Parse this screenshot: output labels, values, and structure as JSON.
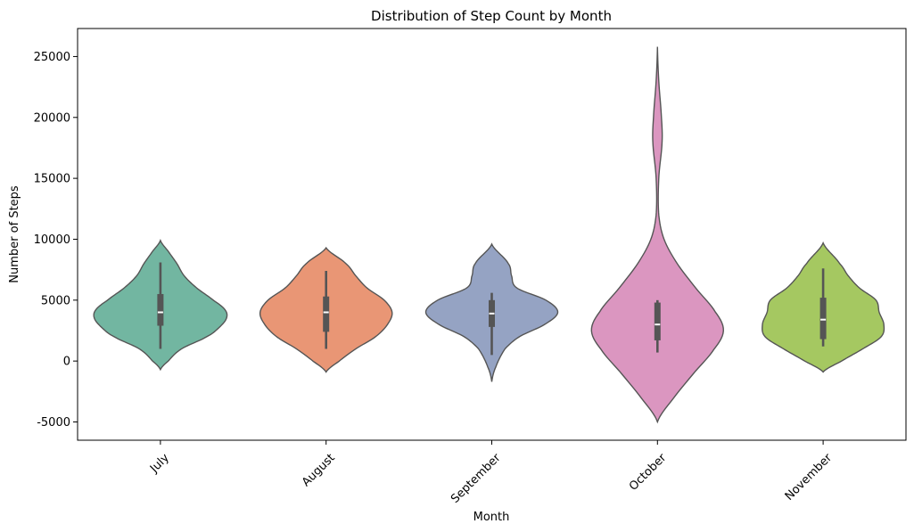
{
  "chart_data": {
    "type": "violin",
    "title": "Distribution of Step Count by Month",
    "xlabel": "Month",
    "ylabel": "Number of Steps",
    "ylim": [
      -6500,
      27300
    ],
    "yticks": [
      -5000,
      0,
      5000,
      10000,
      15000,
      20000,
      25000
    ],
    "grid": false,
    "legend": "none",
    "colors": {
      "outline": "#555555",
      "box": "#555555",
      "median": "#ffffff"
    },
    "categories": [
      "July",
      "August",
      "September",
      "October",
      "November"
    ],
    "series": [
      {
        "category": "July",
        "color": "#72B6A1",
        "box": {
          "whisker_low": 1000,
          "q1": 2900,
          "median": 4000,
          "q3": 5500,
          "whisker_high": 8100
        },
        "density": [
          [
            -700,
            0
          ],
          [
            0,
            0.12
          ],
          [
            1000,
            0.32
          ],
          [
            2000,
            0.7
          ],
          [
            2700,
            0.88
          ],
          [
            3500,
            1.0
          ],
          [
            4200,
            0.98
          ],
          [
            5000,
            0.8
          ],
          [
            6000,
            0.55
          ],
          [
            7000,
            0.36
          ],
          [
            8000,
            0.25
          ],
          [
            9000,
            0.12
          ],
          [
            9900,
            0
          ]
        ]
      },
      {
        "category": "August",
        "color": "#E99675",
        "box": {
          "whisker_low": 1000,
          "q1": 2400,
          "median": 4000,
          "q3": 5300,
          "whisker_high": 7400
        },
        "density": [
          [
            -900,
            0
          ],
          [
            0,
            0.2
          ],
          [
            1000,
            0.45
          ],
          [
            2000,
            0.75
          ],
          [
            3000,
            0.93
          ],
          [
            4000,
            1.0
          ],
          [
            5000,
            0.88
          ],
          [
            6000,
            0.62
          ],
          [
            7000,
            0.45
          ],
          [
            8000,
            0.3
          ],
          [
            9300,
            0
          ]
        ]
      },
      {
        "category": "September",
        "color": "#95A3C3",
        "box": {
          "whisker_low": 500,
          "q1": 2800,
          "median": 3900,
          "q3": 5000,
          "whisker_high": 5600
        },
        "density": [
          [
            -1700,
            0
          ],
          [
            -500,
            0.06
          ],
          [
            1000,
            0.2
          ],
          [
            2000,
            0.42
          ],
          [
            3000,
            0.8
          ],
          [
            4000,
            1.0
          ],
          [
            5000,
            0.82
          ],
          [
            6000,
            0.38
          ],
          [
            7000,
            0.3
          ],
          [
            8000,
            0.25
          ],
          [
            9600,
            0
          ]
        ]
      },
      {
        "category": "October",
        "color": "#DB96C0",
        "box": {
          "whisker_low": 700,
          "q1": 1700,
          "median": 3000,
          "q3": 4800,
          "whisker_high": 5000
        },
        "density": [
          [
            -5000,
            0
          ],
          [
            -3000,
            0.25
          ],
          [
            -1000,
            0.55
          ],
          [
            1000,
            0.86
          ],
          [
            2500,
            1.0
          ],
          [
            4000,
            0.88
          ],
          [
            6000,
            0.58
          ],
          [
            8000,
            0.3
          ],
          [
            10000,
            0.1
          ],
          [
            12000,
            0.02
          ],
          [
            15000,
            0.02
          ],
          [
            18000,
            0.07
          ],
          [
            20000,
            0.06
          ],
          [
            23000,
            0.02
          ],
          [
            25800,
            0
          ]
        ]
      },
      {
        "category": "November",
        "color": "#A5C861",
        "box": {
          "whisker_low": 1200,
          "q1": 1800,
          "median": 3400,
          "q3": 5200,
          "whisker_high": 7600
        },
        "density": [
          [
            -900,
            0
          ],
          [
            0,
            0.28
          ],
          [
            1000,
            0.6
          ],
          [
            2000,
            0.88
          ],
          [
            3000,
            0.92
          ],
          [
            4000,
            0.85
          ],
          [
            5000,
            0.8
          ],
          [
            6000,
            0.55
          ],
          [
            7000,
            0.38
          ],
          [
            8000,
            0.25
          ],
          [
            9700,
            0
          ]
        ]
      }
    ]
  }
}
